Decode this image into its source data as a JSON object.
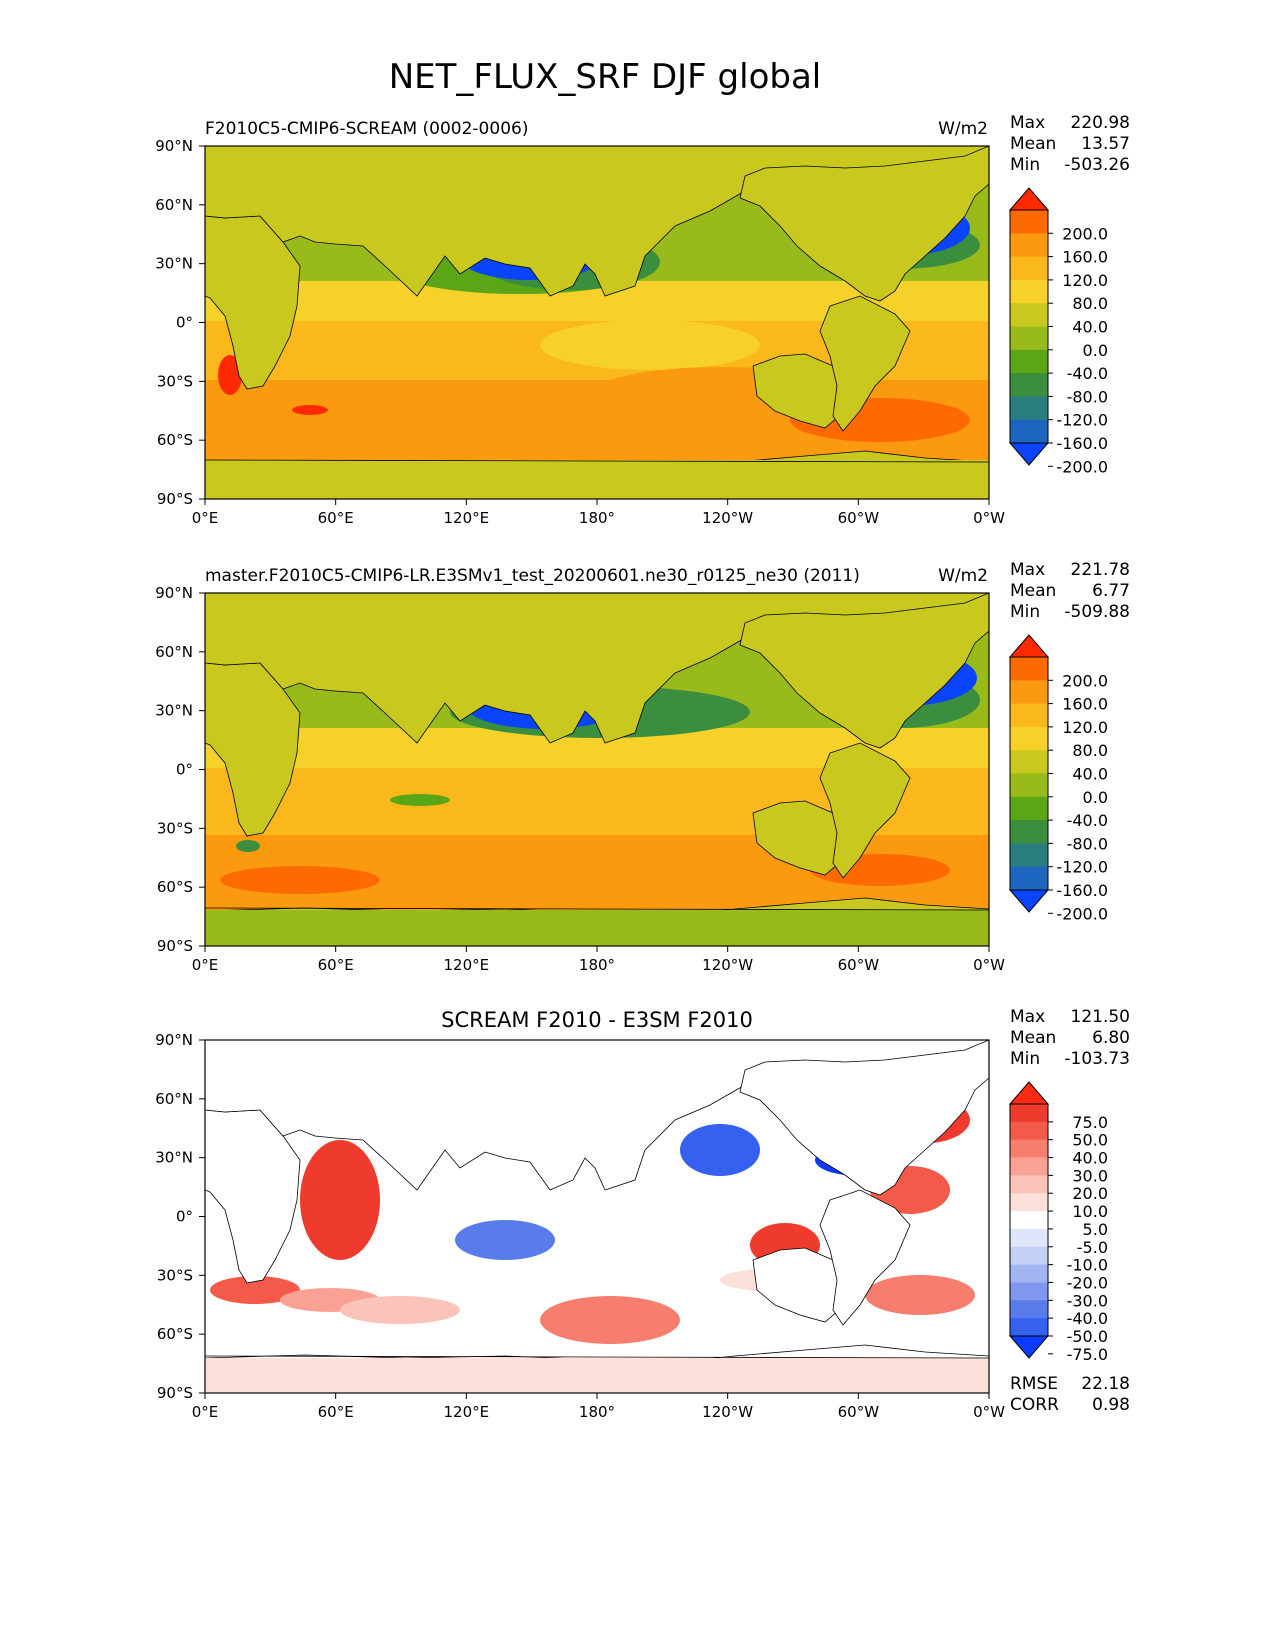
{
  "figure_title": "NET_FLUX_SRF DJF global",
  "chart_data": [
    {
      "type": "heatmap",
      "panel_title_left": "F2010C5-CMIP6-SCREAM (0002-0006)",
      "panel_title_center": "",
      "units": "W/m2",
      "stats": {
        "max_label": "Max",
        "max": "220.98",
        "mean_label": "Mean",
        "mean": "13.57",
        "min_label": "Min",
        "min": "-503.26"
      },
      "x_ticks": [
        "0°E",
        "60°E",
        "120°E",
        "180°",
        "120°W",
        "60°W",
        "0°W"
      ],
      "y_ticks": [
        "90°N",
        "60°N",
        "30°N",
        "0°",
        "30°S",
        "60°S",
        "90°S"
      ],
      "xlim": [
        0,
        360
      ],
      "ylim": [
        -90,
        90
      ],
      "colorbar": {
        "labels": [
          "200.0",
          "160.0",
          "120.0",
          "80.0",
          "40.0",
          "0.0",
          "-40.0",
          "-80.0",
          "-120.0",
          "-160.0",
          "-200.0"
        ],
        "colors": [
          "#ff2a00",
          "#ff6a00",
          "#fb9a0e",
          "#fbb81c",
          "#f5d12a",
          "#c8c81e",
          "#98ba1a",
          "#5aa616",
          "#3a8e3e",
          "#2b7e7e",
          "#1c66c0",
          "#0a44ff"
        ],
        "extend": "both"
      },
      "regions": {
        "high_latitude_south_value": 0.0,
        "southern_ocean_value": 120.0,
        "tropical_ocean_value": 60.0,
        "kuroshio_value": -200.0,
        "gulf_stream_value": -200.0,
        "land_value": 0.0
      }
    },
    {
      "type": "heatmap",
      "panel_title_left": "master.F2010C5-CMIP6-LR.E3SMv1_test_20200601.ne30_r0125_ne30 (2011)",
      "panel_title_center": "",
      "units": "W/m2",
      "stats": {
        "max_label": "Max",
        "max": "221.78",
        "mean_label": "Mean",
        "mean": "6.77",
        "min_label": "Min",
        "min": "-509.88"
      },
      "x_ticks": [
        "0°E",
        "60°E",
        "120°E",
        "180°",
        "120°W",
        "60°W",
        "0°W"
      ],
      "y_ticks": [
        "90°N",
        "60°N",
        "30°N",
        "0°",
        "30°S",
        "60°S",
        "90°S"
      ],
      "xlim": [
        0,
        360
      ],
      "ylim": [
        -90,
        90
      ],
      "colorbar": {
        "labels": [
          "200.0",
          "160.0",
          "120.0",
          "80.0",
          "40.0",
          "0.0",
          "-40.0",
          "-80.0",
          "-120.0",
          "-160.0",
          "-200.0"
        ],
        "colors": [
          "#ff2a00",
          "#ff6a00",
          "#fb9a0e",
          "#fbb81c",
          "#f5d12a",
          "#c8c81e",
          "#98ba1a",
          "#5aa616",
          "#3a8e3e",
          "#2b7e7e",
          "#1c66c0",
          "#0a44ff"
        ],
        "extend": "both"
      },
      "regions": {
        "high_latitude_south_value": 0.0,
        "southern_ocean_value": 120.0,
        "tropical_ocean_value": 60.0,
        "kuroshio_value": -200.0,
        "gulf_stream_value": -200.0,
        "land_value": 0.0
      }
    },
    {
      "type": "heatmap",
      "panel_title_left": "",
      "panel_title_center": "SCREAM F2010 - E3SM F2010",
      "units": "",
      "stats": {
        "max_label": "Max",
        "max": "121.50",
        "mean_label": "Mean",
        "mean": "6.80",
        "min_label": "Min",
        "min": "-103.73"
      },
      "x_ticks": [
        "0°E",
        "60°E",
        "120°E",
        "180°",
        "120°W",
        "60°W",
        "0°W"
      ],
      "y_ticks": [
        "90°N",
        "60°N",
        "30°N",
        "0°",
        "30°S",
        "60°S",
        "90°S"
      ],
      "xlim": [
        0,
        360
      ],
      "ylim": [
        -90,
        90
      ],
      "colorbar": {
        "labels": [
          "75.0",
          "50.0",
          "40.0",
          "30.0",
          "20.0",
          "10.0",
          "5.0",
          "-5.0",
          "-10.0",
          "-20.0",
          "-30.0",
          "-40.0",
          "-50.0",
          "-75.0"
        ],
        "colors": [
          "#ff2a10",
          "#ee3b2e",
          "#f45a4a",
          "#f77d6e",
          "#f9a294",
          "#fbc4ba",
          "#fde0da",
          "#ffffff",
          "#dfe6fa",
          "#c3d0f6",
          "#a2b5f2",
          "#7f98ee",
          "#5a7bea",
          "#3660f0",
          "#0a3cff"
        ],
        "extend": "both"
      },
      "footer_stats": {
        "rmse_label": "RMSE",
        "rmse": "22.18",
        "corr_label": "CORR",
        "corr": "0.98"
      }
    }
  ]
}
